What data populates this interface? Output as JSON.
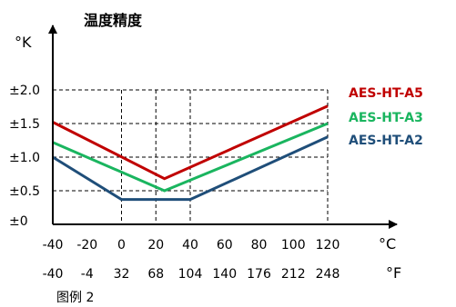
{
  "chart_data": {
    "type": "line",
    "title": "温度精度",
    "ylabel": "°K",
    "xlabel": "°C",
    "x2label": "°F",
    "y_ticks": [
      "±0",
      "±0.5",
      "±1.0",
      "±1.5",
      "±2.0"
    ],
    "x_ticks": [
      "-40",
      "-20",
      "0",
      "20",
      "40",
      "60",
      "80",
      "100",
      "120"
    ],
    "x2_ticks": [
      "-40",
      "-4",
      "32",
      "68",
      "104",
      "140",
      "176",
      "212",
      "248"
    ],
    "xlim": [
      -40,
      120
    ],
    "ylim": [
      0,
      2.0
    ],
    "grid_x": [
      0,
      20,
      40,
      120
    ],
    "grid_y": [
      0.5,
      1.0,
      1.5,
      2.0
    ],
    "series": [
      {
        "name": "AES-HT-A5",
        "color": "#c00000",
        "points": [
          [
            -40,
            1.52
          ],
          [
            25,
            0.68
          ],
          [
            120,
            1.76
          ]
        ]
      },
      {
        "name": "AES-HT-A3",
        "color": "#1ab55f",
        "points": [
          [
            -40,
            1.22
          ],
          [
            25,
            0.5
          ],
          [
            120,
            1.5
          ]
        ]
      },
      {
        "name": "AES-HT-A2",
        "color": "#1f4e79",
        "points": [
          [
            -40,
            1.0
          ],
          [
            0,
            0.37
          ],
          [
            40,
            0.37
          ],
          [
            120,
            1.3
          ]
        ]
      }
    ]
  },
  "caption": "图例 2"
}
